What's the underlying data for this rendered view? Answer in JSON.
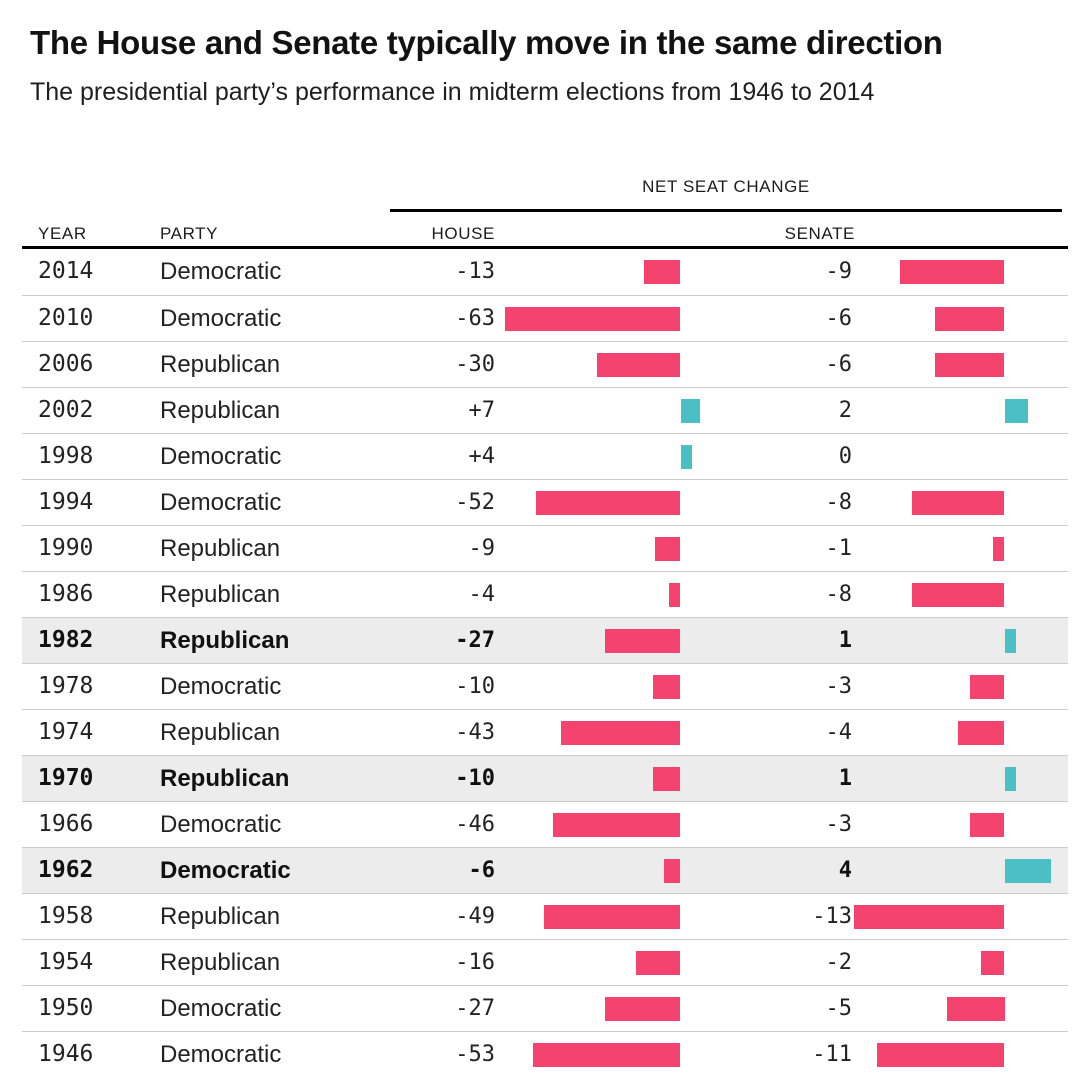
{
  "title": "The House and Senate typically move in the same direction",
  "subtitle": "The presidential party’s performance in midterm elections from 1946 to 2014",
  "table": {
    "group_header": "NET SEAT CHANGE",
    "columns": {
      "year": "YEAR",
      "party": "PARTY",
      "house": "HOUSE",
      "senate": "SENATE"
    }
  },
  "colors": {
    "negative": "#f4436f",
    "positive": "#4bc0c4",
    "highlight_bg": "#ececec",
    "separator": "#cccccc",
    "rule": "#000000"
  },
  "rows": [
    {
      "year": "2014",
      "party": "Democratic",
      "house": -13,
      "house_label": "-13",
      "senate": -9,
      "senate_label": "-9",
      "highlighted": false
    },
    {
      "year": "2010",
      "party": "Democratic",
      "house": -63,
      "house_label": "-63",
      "senate": -6,
      "senate_label": "-6",
      "highlighted": false
    },
    {
      "year": "2006",
      "party": "Republican",
      "house": -30,
      "house_label": "-30",
      "senate": -6,
      "senate_label": "-6",
      "highlighted": false
    },
    {
      "year": "2002",
      "party": "Republican",
      "house": 7,
      "house_label": "+7",
      "senate": 2,
      "senate_label": "2",
      "highlighted": false
    },
    {
      "year": "1998",
      "party": "Democratic",
      "house": 4,
      "house_label": "+4",
      "senate": 0,
      "senate_label": "0",
      "highlighted": false
    },
    {
      "year": "1994",
      "party": "Democratic",
      "house": -52,
      "house_label": "-52",
      "senate": -8,
      "senate_label": "-8",
      "highlighted": false
    },
    {
      "year": "1990",
      "party": "Republican",
      "house": -9,
      "house_label": "-9",
      "senate": -1,
      "senate_label": "-1",
      "highlighted": false
    },
    {
      "year": "1986",
      "party": "Republican",
      "house": -4,
      "house_label": "-4",
      "senate": -8,
      "senate_label": "-8",
      "highlighted": false
    },
    {
      "year": "1982",
      "party": "Republican",
      "house": -27,
      "house_label": "-27",
      "senate": 1,
      "senate_label": "1",
      "highlighted": true
    },
    {
      "year": "1978",
      "party": "Democratic",
      "house": -10,
      "house_label": "-10",
      "senate": -3,
      "senate_label": "-3",
      "highlighted": false
    },
    {
      "year": "1974",
      "party": "Republican",
      "house": -43,
      "house_label": "-43",
      "senate": -4,
      "senate_label": "-4",
      "highlighted": false
    },
    {
      "year": "1970",
      "party": "Republican",
      "house": -10,
      "house_label": "-10",
      "senate": 1,
      "senate_label": "1",
      "highlighted": true
    },
    {
      "year": "1966",
      "party": "Democratic",
      "house": -46,
      "house_label": "-46",
      "senate": -3,
      "senate_label": "-3",
      "highlighted": false
    },
    {
      "year": "1962",
      "party": "Democratic",
      "house": -6,
      "house_label": "-6",
      "senate": 4,
      "senate_label": "4",
      "highlighted": true
    },
    {
      "year": "1958",
      "party": "Republican",
      "house": -49,
      "house_label": "-49",
      "senate": -13,
      "senate_label": "-13",
      "highlighted": false
    },
    {
      "year": "1954",
      "party": "Republican",
      "house": -16,
      "house_label": "-16",
      "senate": -2,
      "senate_label": "-2",
      "highlighted": false
    },
    {
      "year": "1950",
      "party": "Democratic",
      "house": -27,
      "house_label": "-27",
      "senate": -5,
      "senate_label": "-5",
      "highlighted": false
    },
    {
      "year": "1946",
      "party": "Democratic",
      "house": -53,
      "house_label": "-53",
      "senate": -11,
      "senate_label": "-11",
      "highlighted": false
    }
  ],
  "chart_data": {
    "type": "bar",
    "orientation": "horizontal",
    "title": "The House and Senate typically move in the same direction",
    "subtitle": "The presidential party’s performance in midterm elections from 1946 to 2014",
    "group_label": "NET SEAT CHANGE",
    "categories": [
      2014,
      2010,
      2006,
      2002,
      1998,
      1994,
      1990,
      1986,
      1982,
      1978,
      1974,
      1970,
      1966,
      1962,
      1958,
      1954,
      1950,
      1946
    ],
    "category_party": [
      "Democratic",
      "Democratic",
      "Republican",
      "Republican",
      "Democratic",
      "Democratic",
      "Republican",
      "Republican",
      "Republican",
      "Democratic",
      "Republican",
      "Republican",
      "Democratic",
      "Democratic",
      "Republican",
      "Republican",
      "Democratic",
      "Democratic"
    ],
    "series": [
      {
        "name": "House",
        "values": [
          -13,
          -63,
          -30,
          7,
          4,
          -52,
          -9,
          -4,
          -27,
          -10,
          -43,
          -10,
          -46,
          -6,
          -49,
          -16,
          -27,
          -53
        ]
      },
      {
        "name": "Senate",
        "values": [
          -9,
          -6,
          -6,
          2,
          0,
          -8,
          -1,
          -8,
          1,
          -3,
          -4,
          1,
          -3,
          4,
          -13,
          -2,
          -5,
          -11
        ]
      }
    ],
    "highlighted_categories": [
      1982,
      1970,
      1962
    ],
    "house_value_range": [
      -63,
      7
    ],
    "senate_value_range": [
      -13,
      4
    ],
    "negative_color": "#f4436f",
    "positive_color": "#4bc0c4",
    "grid": false,
    "legend": "none"
  }
}
